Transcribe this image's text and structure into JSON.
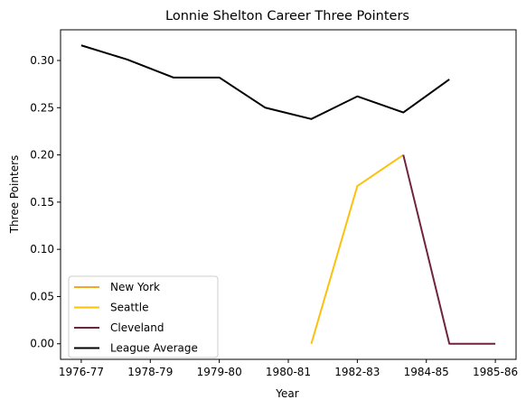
{
  "chart_data": {
    "type": "line",
    "title": "Lonnie Shelton Career Three Pointers",
    "xlabel": "Year",
    "ylabel": "Three Pointers",
    "x_tick_labels": [
      "1976-77",
      "1978-79",
      "1979-80",
      "1980-81",
      "1982-83",
      "1984-85",
      "1985-86"
    ],
    "x_tick_positions": [
      0,
      1.5,
      3,
      4.5,
      6,
      7.5,
      9
    ],
    "xlim": [
      -0.45,
      9.45
    ],
    "ylim": [
      -0.0165,
      0.3325
    ],
    "y_ticks": [
      0.0,
      0.05,
      0.1,
      0.15,
      0.2,
      0.25,
      0.3
    ],
    "y_tick_labels": [
      "0.00",
      "0.05",
      "0.10",
      "0.15",
      "0.20",
      "0.25",
      "0.30"
    ],
    "grid": false,
    "legend_position": "lower-left",
    "series": [
      {
        "name": "New York",
        "color": "#f5a623",
        "x": [],
        "values": []
      },
      {
        "name": "Seattle",
        "color": "#fbc10d",
        "x": [
          5,
          6,
          7
        ],
        "values": [
          0.0,
          0.167,
          0.2
        ]
      },
      {
        "name": "Cleveland",
        "color": "#6f2341",
        "x": [
          7,
          8,
          9
        ],
        "values": [
          0.2,
          0.0,
          0.0
        ]
      },
      {
        "name": "League Average",
        "color": "#000000",
        "x": [
          0,
          1,
          2,
          3,
          4,
          5,
          6,
          7,
          8
        ],
        "values": [
          0.316,
          0.301,
          0.282,
          0.282,
          0.25,
          0.238,
          0.262,
          0.245,
          0.28
        ]
      }
    ]
  }
}
